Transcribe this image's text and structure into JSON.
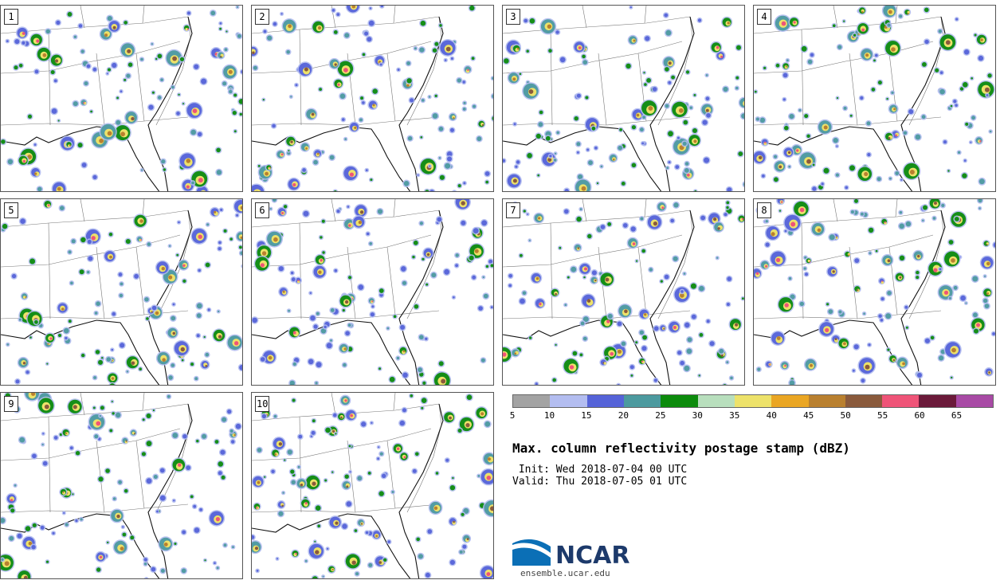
{
  "panels": [
    {
      "label": "1"
    },
    {
      "label": "2"
    },
    {
      "label": "3"
    },
    {
      "label": "4"
    },
    {
      "label": "5"
    },
    {
      "label": "6"
    },
    {
      "label": "7"
    },
    {
      "label": "8"
    },
    {
      "label": "9"
    },
    {
      "label": "10"
    }
  ],
  "colorbar": {
    "colors": [
      "#a3a3a3",
      "#b3bdf0",
      "#5563d8",
      "#4c9a9f",
      "#0c8b0c",
      "#b8dfbd",
      "#ede26a",
      "#eaa623",
      "#b9802f",
      "#8a5a3c",
      "#ef5478",
      "#6b1a3a",
      "#a84aa5"
    ],
    "ticks": [
      "5",
      "10",
      "15",
      "20",
      "25",
      "30",
      "35",
      "40",
      "45",
      "50",
      "55",
      "60",
      "65"
    ]
  },
  "title": "Max. column reflectivity postage stamp (dBZ)",
  "init": " Init: Wed 2018-07-04 00 UTC",
  "valid": "Valid: Thu 2018-07-05 01 UTC",
  "logo": {
    "name": "NCAR",
    "url": "ensemble.ucar.edu"
  }
}
